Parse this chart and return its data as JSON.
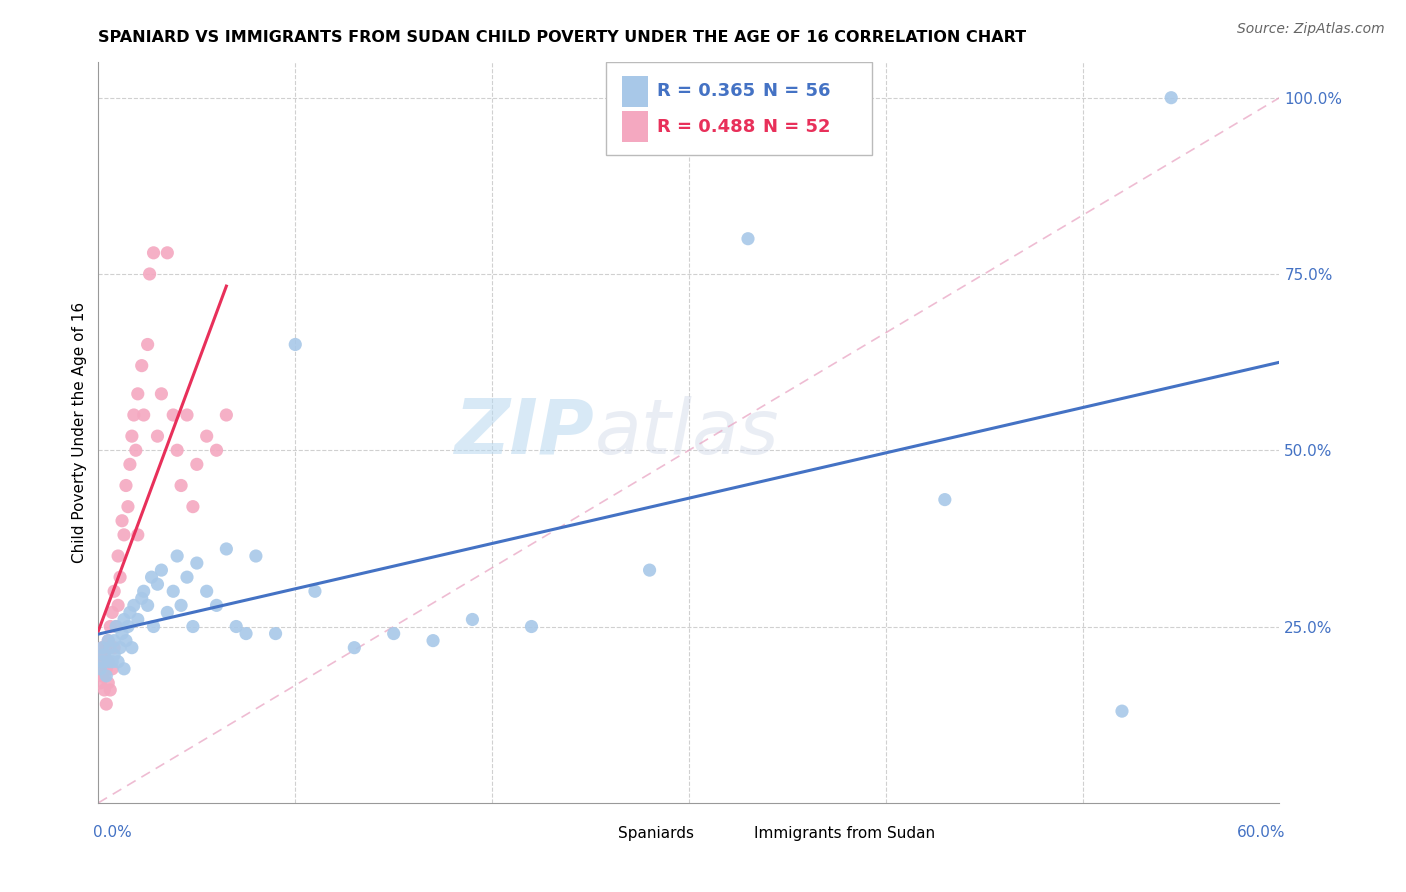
{
  "title": "SPANIARD VS IMMIGRANTS FROM SUDAN CHILD POVERTY UNDER THE AGE OF 16 CORRELATION CHART",
  "source": "Source: ZipAtlas.com",
  "ylabel": "Child Poverty Under the Age of 16",
  "xlim": [
    0.0,
    0.6
  ],
  "ylim": [
    0.0,
    1.05
  ],
  "watermark": "ZIPatlas",
  "blue_color": "#a8c8e8",
  "pink_color": "#f4a8c0",
  "blue_line_color": "#4472c4",
  "pink_line_color": "#e8305a",
  "blue_R": 0.365,
  "blue_N": 56,
  "pink_R": 0.488,
  "pink_N": 52,
  "spaniards_x": [
    0.001,
    0.002,
    0.002,
    0.003,
    0.004,
    0.005,
    0.005,
    0.006,
    0.007,
    0.008,
    0.008,
    0.009,
    0.01,
    0.011,
    0.012,
    0.013,
    0.013,
    0.014,
    0.015,
    0.016,
    0.017,
    0.018,
    0.02,
    0.022,
    0.023,
    0.025,
    0.027,
    0.028,
    0.03,
    0.032,
    0.035,
    0.038,
    0.04,
    0.042,
    0.045,
    0.048,
    0.05,
    0.055,
    0.06,
    0.065,
    0.07,
    0.075,
    0.08,
    0.09,
    0.1,
    0.11,
    0.13,
    0.15,
    0.17,
    0.19,
    0.22,
    0.28,
    0.33,
    0.43,
    0.52,
    0.545
  ],
  "spaniards_y": [
    0.19,
    0.2,
    0.22,
    0.21,
    0.18,
    0.2,
    0.23,
    0.22,
    0.2,
    0.21,
    0.23,
    0.25,
    0.2,
    0.22,
    0.24,
    0.19,
    0.26,
    0.23,
    0.25,
    0.27,
    0.22,
    0.28,
    0.26,
    0.29,
    0.3,
    0.28,
    0.32,
    0.25,
    0.31,
    0.33,
    0.27,
    0.3,
    0.35,
    0.28,
    0.32,
    0.25,
    0.34,
    0.3,
    0.28,
    0.36,
    0.25,
    0.24,
    0.35,
    0.24,
    0.65,
    0.3,
    0.22,
    0.24,
    0.23,
    0.26,
    0.25,
    0.33,
    0.8,
    0.43,
    0.13,
    1.0
  ],
  "sudan_x": [
    0.001,
    0.001,
    0.001,
    0.002,
    0.002,
    0.002,
    0.003,
    0.003,
    0.003,
    0.004,
    0.004,
    0.004,
    0.005,
    0.005,
    0.005,
    0.006,
    0.006,
    0.007,
    0.007,
    0.008,
    0.008,
    0.009,
    0.01,
    0.01,
    0.011,
    0.012,
    0.013,
    0.014,
    0.015,
    0.016,
    0.017,
    0.018,
    0.019,
    0.02,
    0.02,
    0.022,
    0.023,
    0.025,
    0.026,
    0.028,
    0.03,
    0.032,
    0.035,
    0.038,
    0.04,
    0.042,
    0.045,
    0.048,
    0.05,
    0.055,
    0.06,
    0.065
  ],
  "sudan_y": [
    0.17,
    0.19,
    0.21,
    0.18,
    0.2,
    0.22,
    0.16,
    0.18,
    0.21,
    0.19,
    0.22,
    0.14,
    0.17,
    0.2,
    0.23,
    0.16,
    0.25,
    0.19,
    0.27,
    0.22,
    0.3,
    0.25,
    0.28,
    0.35,
    0.32,
    0.4,
    0.38,
    0.45,
    0.42,
    0.48,
    0.52,
    0.55,
    0.5,
    0.58,
    0.38,
    0.62,
    0.55,
    0.65,
    0.75,
    0.78,
    0.52,
    0.58,
    0.78,
    0.55,
    0.5,
    0.45,
    0.55,
    0.42,
    0.48,
    0.52,
    0.5,
    0.55
  ],
  "ref_line_color": "#e8a0c0",
  "grid_color": "#d0d0d0",
  "ytick_color": "#4472c4",
  "xtick_label_color": "#4472c4"
}
